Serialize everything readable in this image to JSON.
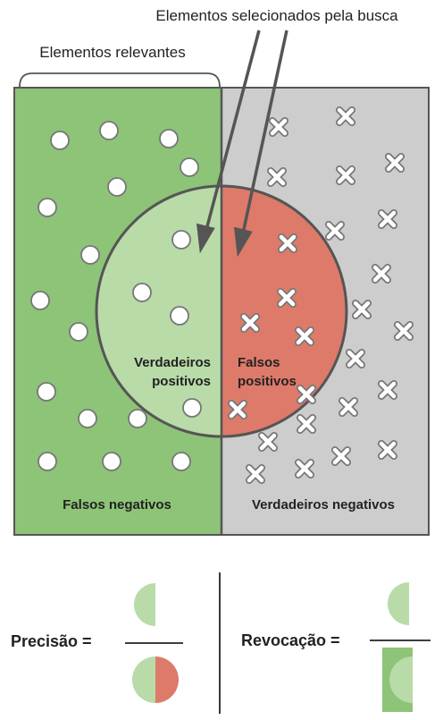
{
  "labels": {
    "selected": "Elementos selecionados pela busca",
    "relevant": "Elementos relevantes",
    "true_positives_line1": "Verdadeiros",
    "true_positives_line2": "positivos",
    "false_positives_line1": "Falsos",
    "false_positives_line2": "positivos",
    "false_negatives": "Falsos negativos",
    "true_negatives": "Verdadeiros negativos"
  },
  "formulas": {
    "precision": "Precisão =",
    "recall": "Revocação ="
  },
  "colors": {
    "relevant_dark": "#8dc477",
    "relevant_light": "#b8dba8",
    "irrelevant_gray": "#cdcdcd",
    "false_positive_red": "#de7a6a",
    "outline": "#555555"
  }
}
